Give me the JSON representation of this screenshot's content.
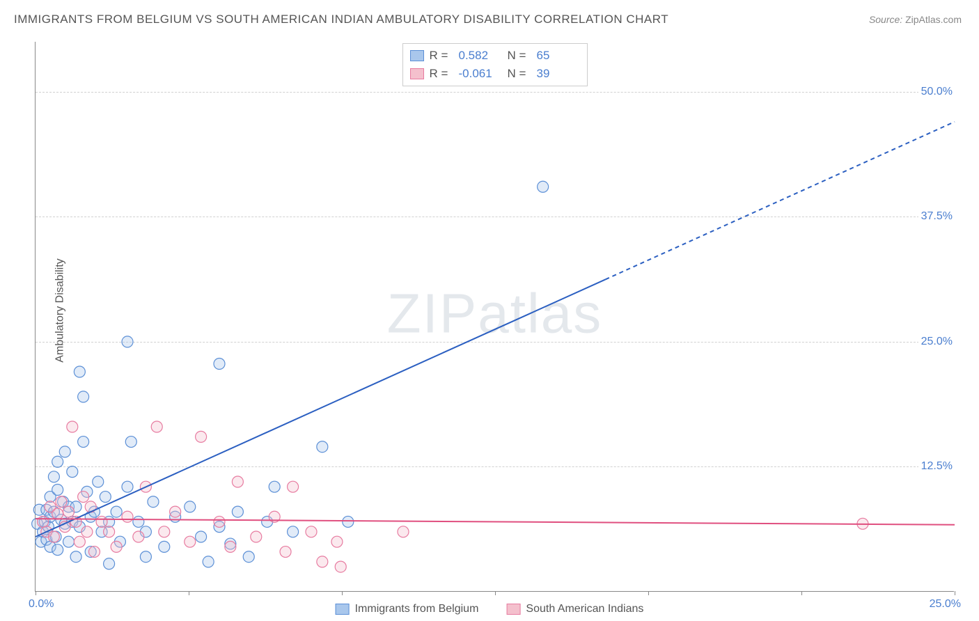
{
  "title": "IMMIGRANTS FROM BELGIUM VS SOUTH AMERICAN INDIAN AMBULATORY DISABILITY CORRELATION CHART",
  "source_label": "Source:",
  "source_value": "ZipAtlas.com",
  "y_axis_title": "Ambulatory Disability",
  "watermark": "ZIPatlas",
  "chart": {
    "type": "scatter",
    "background_color": "#ffffff",
    "grid_color": "#d0d0d0",
    "grid_dash": "4,4",
    "axis_color": "#888888",
    "tick_label_color": "#4a7ecf",
    "tick_fontsize": 16,
    "xlim": [
      0,
      25
    ],
    "ylim": [
      0,
      55
    ],
    "y_ticks": [
      12.5,
      25.0,
      37.5,
      50.0
    ],
    "y_tick_labels": [
      "12.5%",
      "25.0%",
      "37.5%",
      "50.0%"
    ],
    "x_tick_positions": [
      0,
      4.17,
      8.33,
      12.5,
      16.67,
      20.83,
      25
    ],
    "x_min_label": "0.0%",
    "x_max_label": "25.0%",
    "marker_radius": 8,
    "marker_fill_opacity": 0.35,
    "marker_stroke_width": 1.2,
    "series": [
      {
        "name": "Immigrants from Belgium",
        "color_fill": "#a9c7ec",
        "color_stroke": "#5b8fd6",
        "r_value": "0.582",
        "n_value": "65",
        "trend": {
          "x1": 0,
          "y1": 5.5,
          "x2": 25,
          "y2": 47,
          "solid_until_x": 15.5,
          "stroke": "#2b5fc1",
          "width": 2
        },
        "points": [
          [
            0.05,
            6.8
          ],
          [
            0.1,
            8.2
          ],
          [
            0.15,
            5.0
          ],
          [
            0.2,
            6.0
          ],
          [
            0.25,
            7.0
          ],
          [
            0.3,
            8.2
          ],
          [
            0.3,
            5.2
          ],
          [
            0.35,
            6.5
          ],
          [
            0.4,
            9.5
          ],
          [
            0.4,
            7.5
          ],
          [
            0.5,
            11.5
          ],
          [
            0.5,
            8.0
          ],
          [
            0.55,
            5.5
          ],
          [
            0.6,
            10.2
          ],
          [
            0.6,
            13.0
          ],
          [
            0.7,
            7.2
          ],
          [
            0.75,
            9.0
          ],
          [
            0.8,
            14.0
          ],
          [
            0.8,
            6.8
          ],
          [
            0.9,
            8.5
          ],
          [
            0.9,
            5.0
          ],
          [
            1.0,
            12.0
          ],
          [
            1.0,
            7.0
          ],
          [
            1.1,
            8.5
          ],
          [
            1.1,
            3.5
          ],
          [
            1.2,
            6.5
          ],
          [
            1.2,
            22.0
          ],
          [
            1.3,
            15.0
          ],
          [
            1.3,
            19.5
          ],
          [
            1.4,
            10.0
          ],
          [
            1.5,
            7.5
          ],
          [
            1.5,
            4.0
          ],
          [
            1.6,
            8.0
          ],
          [
            1.7,
            11.0
          ],
          [
            1.8,
            6.0
          ],
          [
            1.9,
            9.5
          ],
          [
            2.0,
            7.0
          ],
          [
            2.0,
            2.8
          ],
          [
            2.2,
            8.0
          ],
          [
            2.3,
            5.0
          ],
          [
            2.5,
            25.0
          ],
          [
            2.5,
            10.5
          ],
          [
            2.6,
            15.0
          ],
          [
            2.8,
            7.0
          ],
          [
            3.0,
            6.0
          ],
          [
            3.0,
            3.5
          ],
          [
            3.2,
            9.0
          ],
          [
            3.5,
            4.5
          ],
          [
            3.8,
            7.5
          ],
          [
            4.2,
            8.5
          ],
          [
            4.5,
            5.5
          ],
          [
            4.7,
            3.0
          ],
          [
            5.0,
            6.5
          ],
          [
            5.0,
            22.8
          ],
          [
            5.3,
            4.8
          ],
          [
            5.5,
            8.0
          ],
          [
            5.8,
            3.5
          ],
          [
            6.3,
            7.0
          ],
          [
            6.5,
            10.5
          ],
          [
            7.0,
            6.0
          ],
          [
            7.8,
            14.5
          ],
          [
            8.5,
            7.0
          ],
          [
            13.8,
            40.5
          ],
          [
            0.4,
            4.5
          ],
          [
            0.6,
            4.2
          ]
        ]
      },
      {
        "name": "South American Indians",
        "color_fill": "#f4c0cd",
        "color_stroke": "#e77ba0",
        "r_value": "-0.061",
        "n_value": "39",
        "trend": {
          "x1": 0,
          "y1": 7.3,
          "x2": 25,
          "y2": 6.7,
          "solid_until_x": 25,
          "stroke": "#e04f7f",
          "width": 2
        },
        "points": [
          [
            0.2,
            7.0
          ],
          [
            0.3,
            6.0
          ],
          [
            0.4,
            8.5
          ],
          [
            0.5,
            5.5
          ],
          [
            0.6,
            7.8
          ],
          [
            0.7,
            9.0
          ],
          [
            0.8,
            6.5
          ],
          [
            0.9,
            8.0
          ],
          [
            1.0,
            16.5
          ],
          [
            1.1,
            7.0
          ],
          [
            1.2,
            5.0
          ],
          [
            1.3,
            9.5
          ],
          [
            1.4,
            6.0
          ],
          [
            1.5,
            8.5
          ],
          [
            1.6,
            4.0
          ],
          [
            1.8,
            7.0
          ],
          [
            2.0,
            6.0
          ],
          [
            2.2,
            4.5
          ],
          [
            2.5,
            7.5
          ],
          [
            2.8,
            5.5
          ],
          [
            3.0,
            10.5
          ],
          [
            3.3,
            16.5
          ],
          [
            3.5,
            6.0
          ],
          [
            3.8,
            8.0
          ],
          [
            4.2,
            5.0
          ],
          [
            4.5,
            15.5
          ],
          [
            5.0,
            7.0
          ],
          [
            5.3,
            4.5
          ],
          [
            5.5,
            11.0
          ],
          [
            6.0,
            5.5
          ],
          [
            6.5,
            7.5
          ],
          [
            6.8,
            4.0
          ],
          [
            7.0,
            10.5
          ],
          [
            7.5,
            6.0
          ],
          [
            7.8,
            3.0
          ],
          [
            8.2,
            5.0
          ],
          [
            8.3,
            2.5
          ],
          [
            10.0,
            6.0
          ],
          [
            22.5,
            6.8
          ]
        ]
      }
    ]
  },
  "legend_bottom": [
    {
      "label": "Immigrants from Belgium",
      "fill": "#a9c7ec",
      "stroke": "#5b8fd6"
    },
    {
      "label": "South American Indians",
      "fill": "#f4c0cd",
      "stroke": "#e77ba0"
    }
  ]
}
